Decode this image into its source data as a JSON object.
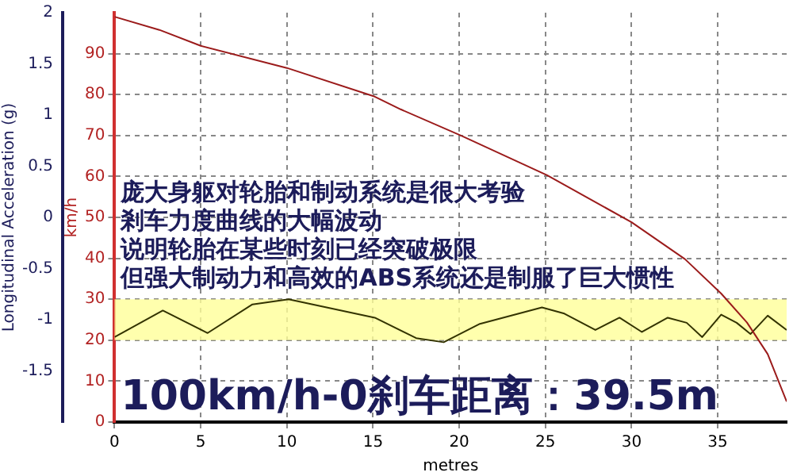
{
  "chart_data": {
    "type": "line",
    "xlabel": "metres",
    "ylabel": "km/h",
    "y2label": "Longitudinal Acceleration (g)",
    "xlim": [
      0,
      39
    ],
    "xticks": [
      0,
      5,
      10,
      15,
      20,
      25,
      30,
      35
    ],
    "ylim": [
      0,
      100
    ],
    "yticks": [
      0,
      10,
      20,
      30,
      40,
      50,
      60,
      70,
      80,
      90
    ],
    "y2lim": [
      -2,
      2
    ],
    "y2ticks": [
      -1.5,
      -1,
      -0.5,
      0,
      0.5,
      1,
      1.5,
      2
    ],
    "grid": true,
    "legend": false,
    "marker": "none",
    "line_style": "solid",
    "bands": [
      {
        "axis": "y",
        "from": 20,
        "to": 30,
        "color": "#ffff99"
      }
    ],
    "series": [
      {
        "color": "#9b1b1b",
        "x": [
          0,
          2.6,
          5,
          10,
          15.1,
          16.6,
          20.1,
          25.1,
          30,
          33.1,
          35.2,
          36.7,
          37.9,
          39
        ],
        "values": [
          99,
          95.8,
          91.9,
          86.5,
          79.5,
          76.4,
          70,
          60.3,
          48.8,
          39.8,
          31.4,
          24.3,
          16.6,
          5
        ]
      },
      {
        "color": "#333300",
        "axis": "y2",
        "x": [
          0,
          2.8,
          5.4,
          8,
          10.1,
          15.1,
          17.5,
          19.1,
          21.2,
          24.8,
          26.1,
          27.9,
          29.3,
          30.6,
          32.1,
          33.2,
          34.1,
          35.2,
          36.1,
          36.9,
          37.9,
          39
        ],
        "values": [
          -1.17,
          -0.91,
          -1.13,
          -0.85,
          -0.8,
          -0.98,
          -1.18,
          -1.22,
          -1.04,
          -0.88,
          -0.94,
          -1.1,
          -0.98,
          -1.12,
          -0.98,
          -1.03,
          -1.17,
          -0.95,
          -1.03,
          -1.14,
          -0.96,
          -1.1
        ]
      }
    ],
    "annotations": [
      "庞大身躯对轮胎和制动系统是很大考验",
      "剎车力度曲线的大幅波动",
      "说明轮胎在某些时刻已经突破极限",
      "但强大制动力和高效的ABS系统还是制服了巨大惯性",
      "100km/h-0刹车距离：39.5m"
    ]
  }
}
